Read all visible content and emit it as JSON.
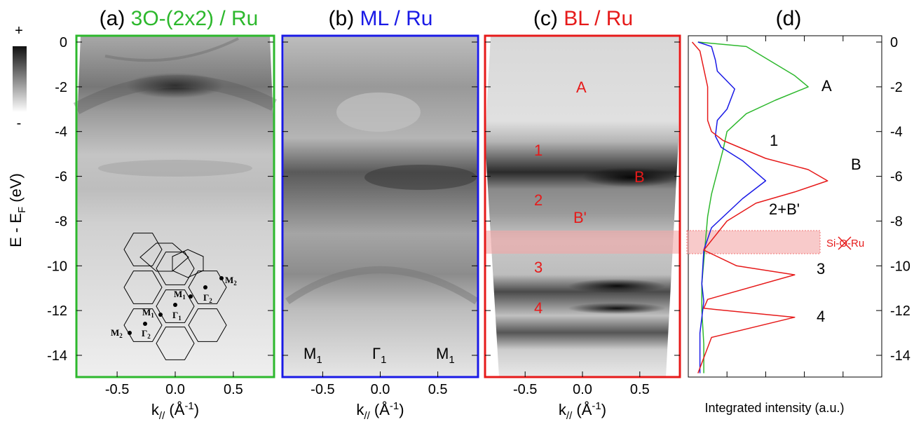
{
  "panels": {
    "a": {
      "title_prefix": "(a) ",
      "title_main": "3O-(2x2) / Ru",
      "color": "#2db82d"
    },
    "b": {
      "title_prefix": "(b) ",
      "title_main": "ML / Ru",
      "color": "#1a1ae6"
    },
    "c": {
      "title_prefix": "(c) ",
      "title_main": "BL / Ru",
      "color": "#e61a1a"
    },
    "d": {
      "title": "(d)"
    }
  },
  "colorbar": {
    "plus": "+",
    "minus": "-"
  },
  "axes": {
    "ylabel": "E - E",
    "ylabel_sub": "F",
    "ylabel_tail": " (eV)",
    "xlabel": "k",
    "xlabel_sub": "//",
    "xlabel_tail": " (Å",
    "xlabel_sup": "-1",
    "xlabel_end": ")",
    "d_xlabel": "Integrated intensity (a.u.)",
    "y_ticks": [
      "0",
      "-2",
      "-4",
      "-6",
      "-8",
      "-10",
      "-12",
      "-14"
    ],
    "x_ticks": [
      "-0.5",
      "0.0",
      "0.5"
    ]
  },
  "annotations_b": {
    "m1_left": "M",
    "gamma": "Γ",
    "m1_right": "M",
    "sub": "1"
  },
  "annotations_c": {
    "A": "A",
    "one": "1",
    "B": "B",
    "two": "2",
    "Bp": "B'",
    "three": "3",
    "four": "4"
  },
  "annotations_d": {
    "A": "A",
    "one": "1",
    "B": "B",
    "twoBp": "2+B'",
    "three": "3",
    "four": "4",
    "siORu": "Si-O-Ru"
  },
  "bz_labels": {
    "M2": "M",
    "M1": "M",
    "G1": "Γ",
    "G2": "Γ",
    "s1": "1",
    "s2": "2"
  },
  "chart_data": {
    "type": "line",
    "title": "(d)",
    "xlabel": "Integrated intensity (a.u.)",
    "ylabel": "E - EF (eV)",
    "ylim": [
      -15,
      0
    ],
    "series": [
      {
        "name": "3O-(2x2) / Ru",
        "color": "#2db82d",
        "x": [
          0.05,
          0.3,
          0.55,
          0.62,
          0.45,
          0.3,
          0.2,
          0.18,
          0.15,
          0.12,
          0.1,
          0.09,
          0.08,
          0.07,
          0.07,
          0.08,
          0.08
        ],
        "y": [
          0,
          -0.2,
          -1.5,
          -2.0,
          -2.6,
          -3.2,
          -4.0,
          -4.8,
          -5.8,
          -6.8,
          -7.8,
          -8.8,
          -9.8,
          -10.8,
          -12.0,
          -13.5,
          -14.8
        ]
      },
      {
        "name": "ML / Ru",
        "color": "#1a1ae6",
        "x": [
          0.05,
          0.12,
          0.14,
          0.15,
          0.24,
          0.2,
          0.15,
          0.14,
          0.17,
          0.28,
          0.4,
          0.28,
          0.12,
          0.08,
          0.07,
          0.08,
          0.06,
          0.06
        ],
        "y": [
          0,
          -0.2,
          -0.8,
          -1.3,
          -2.1,
          -3.0,
          -3.5,
          -4.2,
          -4.7,
          -5.3,
          -6.2,
          -7.0,
          -8.3,
          -9.3,
          -10.8,
          -11.6,
          -13.0,
          -14.8
        ]
      },
      {
        "name": "BL / Ru",
        "color": "#e61a1a",
        "x": [
          0.02,
          0.06,
          0.08,
          0.1,
          0.1,
          0.12,
          0.18,
          0.4,
          0.62,
          0.72,
          0.55,
          0.35,
          0.2,
          0.08,
          0.25,
          0.55,
          0.1,
          0.08,
          0.55,
          0.12,
          0.05
        ],
        "y": [
          0,
          -0.4,
          -1.2,
          -2.0,
          -3.5,
          -4.0,
          -4.4,
          -5.2,
          -5.7,
          -6.2,
          -6.7,
          -7.2,
          -8.0,
          -9.3,
          -10.0,
          -10.4,
          -11.5,
          -11.9,
          -12.3,
          -13.2,
          -14.8
        ]
      }
    ]
  }
}
